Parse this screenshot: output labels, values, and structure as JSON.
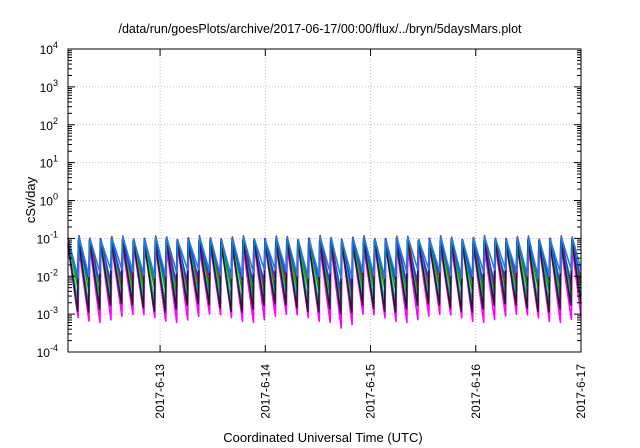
{
  "chart_data": {
    "type": "line",
    "title": "/data/run/goesPlots/archive/2017-06-17/00:00/flux/../bryn/5daysMars.plot",
    "xlabel": "Coordinated Universal Time (UTC)",
    "ylabel": "cSv/day",
    "y_scale": "log",
    "ylim": [
      0.0001,
      10000
    ],
    "xlim": [
      "2017-06-12T03:00",
      "2017-06-17T00:00"
    ],
    "x_ticks": [
      "2017-6-13",
      "2017-6-14",
      "2017-6-15",
      "2017-6-16",
      "2017-6-17"
    ],
    "y_ticks": [
      {
        "base": "10",
        "exp": "-4"
      },
      {
        "base": "10",
        "exp": "-3"
      },
      {
        "base": "10",
        "exp": "-2"
      },
      {
        "base": "10",
        "exp": "-1"
      },
      {
        "base": "10",
        "exp": "0"
      },
      {
        "base": "10",
        "exp": "1"
      },
      {
        "base": "10",
        "exp": "2"
      },
      {
        "base": "10",
        "exp": "3"
      },
      {
        "base": "10",
        "exp": "4"
      }
    ],
    "grid": true,
    "cycle_period_hours": 2.5,
    "anomaly_near": "2017-06-14T16:30",
    "series": [
      {
        "color": "#ff0000",
        "peak": 0.105,
        "trough": 0.006
      },
      {
        "color": "#00aa00",
        "peak": 0.095,
        "trough": 0.004
      },
      {
        "color": "#3333ff",
        "peak": 0.09,
        "trough": 0.009
      },
      {
        "color": "#ff00ff",
        "peak": 0.06,
        "trough": 0.0008
      },
      {
        "color": "#20b0b0",
        "peak": 0.075,
        "trough": 0.0025
      },
      {
        "color": "#202020",
        "peak": 0.085,
        "trough": 0.0015
      },
      {
        "color": "#1a7fe0",
        "peak": 0.1,
        "trough": 0.012
      }
    ]
  }
}
